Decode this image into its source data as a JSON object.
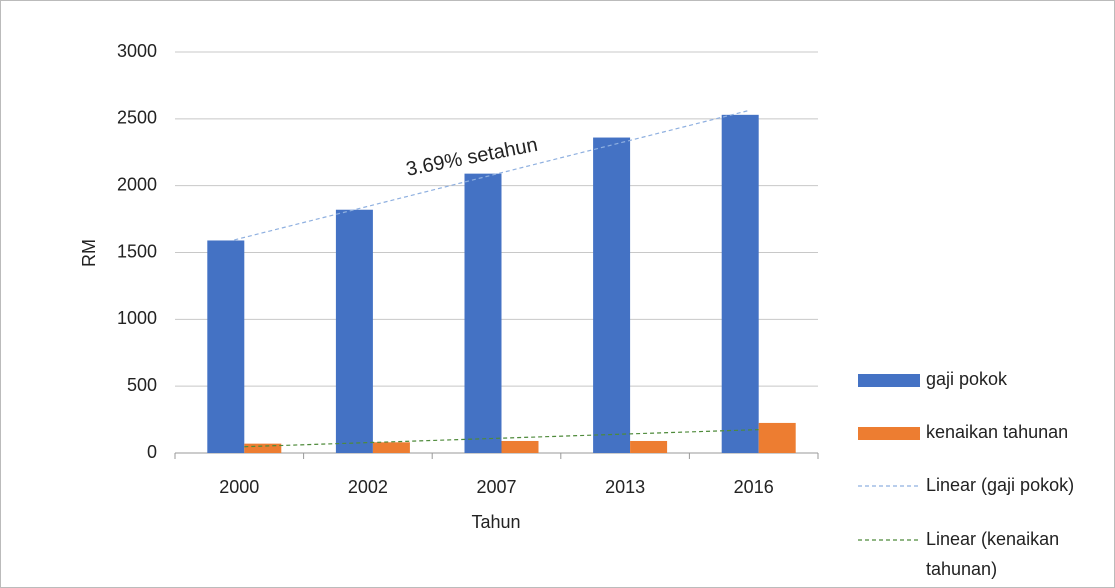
{
  "chart_data": {
    "type": "bar",
    "categories": [
      "2000",
      "2002",
      "2007",
      "2013",
      "2016"
    ],
    "series": [
      {
        "name": "gaji pokok",
        "color": "#4472c4",
        "values": [
          1590,
          1820,
          2090,
          2360,
          2530
        ]
      },
      {
        "name": "kenaikan tahunan",
        "color": "#ed7d31",
        "values": [
          70,
          80,
          90,
          90,
          225
        ]
      }
    ],
    "trendlines": [
      {
        "name": "Linear (gaji pokok)",
        "color": "#8fb0e0"
      },
      {
        "name": "Linear (kenaikan tahunan)",
        "color": "#4e8a3a"
      }
    ],
    "annotation": "3.69% setahun",
    "xlabel": "Tahun",
    "ylabel": "RM",
    "ylim": [
      0,
      3000
    ],
    "yticks": [
      0,
      500,
      1000,
      1500,
      2000,
      2500,
      3000
    ],
    "grid": true
  }
}
